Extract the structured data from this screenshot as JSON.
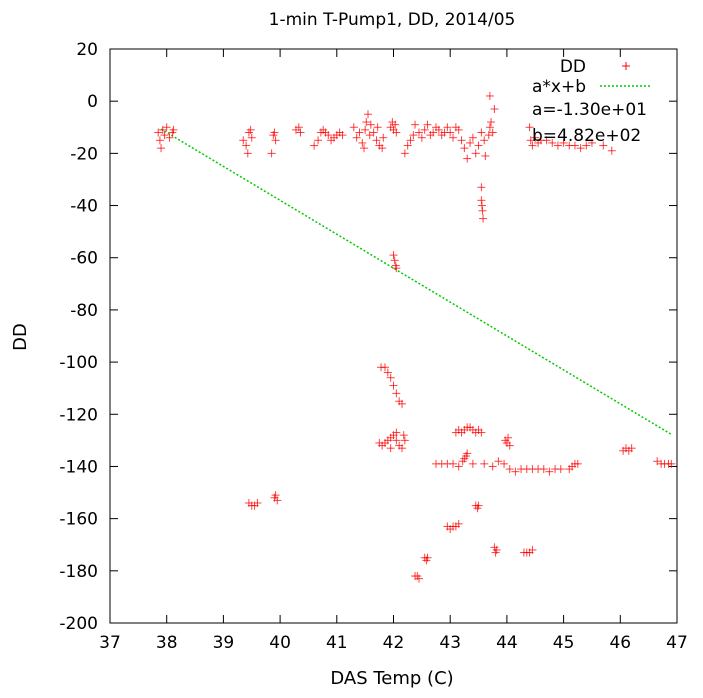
{
  "chart_data": {
    "type": "scatter",
    "title": "1-min T-Pump1, DD, 2014/05",
    "xlabel": "DAS Temp (C)",
    "ylabel": "DD",
    "xlim": [
      37,
      47
    ],
    "ylim": [
      -200,
      20
    ],
    "xticks": [
      "37",
      "38",
      "39",
      "40",
      "41",
      "42",
      "43",
      "44",
      "45",
      "46",
      "47"
    ],
    "yticks": [
      "20",
      "0",
      "-20",
      "-40",
      "-60",
      "-80",
      "-100",
      "-120",
      "-140",
      "-160",
      "-180",
      "-200"
    ],
    "grid": false,
    "legend_position": "top-right",
    "annotations": [
      "a=-1.30e+01",
      "b=4.82e+02"
    ],
    "colors": {
      "scatter": "#ff0000",
      "fit": "#00cc00"
    },
    "series": [
      {
        "name": "DD",
        "kind": "points",
        "points": [
          [
            37.85,
            -12
          ],
          [
            37.88,
            -15
          ],
          [
            37.9,
            -18
          ],
          [
            37.93,
            -11
          ],
          [
            37.96,
            -13
          ],
          [
            38.0,
            -10
          ],
          [
            38.05,
            -14
          ],
          [
            38.1,
            -12
          ],
          [
            38.12,
            -11
          ],
          [
            39.35,
            -15
          ],
          [
            39.4,
            -17
          ],
          [
            39.43,
            -20
          ],
          [
            39.45,
            -12
          ],
          [
            39.48,
            -11
          ],
          [
            39.5,
            -14
          ],
          [
            39.85,
            -20
          ],
          [
            39.88,
            -13
          ],
          [
            39.9,
            -12
          ],
          [
            39.92,
            -15
          ],
          [
            40.28,
            -11
          ],
          [
            40.33,
            -10
          ],
          [
            40.36,
            -12
          ],
          [
            40.6,
            -17
          ],
          [
            40.67,
            -15
          ],
          [
            40.72,
            -12
          ],
          [
            40.76,
            -11
          ],
          [
            40.8,
            -12
          ],
          [
            40.85,
            -13
          ],
          [
            40.9,
            -15
          ],
          [
            40.95,
            -14
          ],
          [
            41.0,
            -13
          ],
          [
            41.05,
            -12
          ],
          [
            41.1,
            -13
          ],
          [
            41.3,
            -10
          ],
          [
            41.35,
            -14
          ],
          [
            41.4,
            -12
          ],
          [
            41.45,
            -16
          ],
          [
            41.48,
            -18
          ],
          [
            41.5,
            -11
          ],
          [
            41.52,
            -8
          ],
          [
            41.55,
            -5
          ],
          [
            41.58,
            -13
          ],
          [
            41.6,
            -9
          ],
          [
            41.65,
            -12
          ],
          [
            41.7,
            -15
          ],
          [
            41.72,
            -10
          ],
          [
            41.75,
            -17
          ],
          [
            41.8,
            -18
          ],
          [
            41.82,
            -14
          ],
          [
            41.95,
            -10
          ],
          [
            41.98,
            -8
          ],
          [
            42.0,
            -11
          ],
          [
            42.03,
            -9
          ],
          [
            42.05,
            -12
          ],
          [
            42.2,
            -20
          ],
          [
            42.25,
            -17
          ],
          [
            42.3,
            -15
          ],
          [
            42.35,
            -13
          ],
          [
            42.38,
            -9
          ],
          [
            42.45,
            -12
          ],
          [
            42.5,
            -14
          ],
          [
            42.55,
            -11
          ],
          [
            42.6,
            -9
          ],
          [
            42.65,
            -13
          ],
          [
            42.7,
            -12
          ],
          [
            42.75,
            -10
          ],
          [
            42.8,
            -11
          ],
          [
            42.85,
            -13
          ],
          [
            42.9,
            -12
          ],
          [
            42.95,
            -10
          ],
          [
            43.0,
            -12
          ],
          [
            43.05,
            -14
          ],
          [
            43.1,
            -10
          ],
          [
            43.15,
            -11
          ],
          [
            43.2,
            -15
          ],
          [
            43.25,
            -18
          ],
          [
            43.3,
            -22
          ],
          [
            43.35,
            -16
          ],
          [
            43.4,
            -14
          ],
          [
            43.45,
            -20
          ],
          [
            43.5,
            -17
          ],
          [
            43.55,
            -12
          ],
          [
            43.6,
            -15
          ],
          [
            43.62,
            -21
          ],
          [
            43.68,
            -13
          ],
          [
            43.7,
            -10
          ],
          [
            43.72,
            -8
          ],
          [
            43.75,
            -12
          ],
          [
            43.78,
            -3
          ],
          [
            43.7,
            2
          ],
          [
            44.4,
            -10
          ],
          [
            44.42,
            -15
          ],
          [
            44.45,
            -17
          ],
          [
            44.5,
            -14
          ],
          [
            44.55,
            -16
          ],
          [
            44.6,
            -15
          ],
          [
            44.7,
            -15
          ],
          [
            44.8,
            -16
          ],
          [
            44.9,
            -17
          ],
          [
            45.0,
            -16
          ],
          [
            45.1,
            -17
          ],
          [
            45.2,
            -17
          ],
          [
            45.3,
            -18
          ],
          [
            45.4,
            -17
          ],
          [
            45.5,
            -16
          ],
          [
            45.7,
            -17
          ],
          [
            45.85,
            -19
          ],
          [
            43.55,
            -33
          ],
          [
            43.55,
            -38
          ],
          [
            43.56,
            -40
          ],
          [
            43.57,
            -42
          ],
          [
            43.58,
            -45
          ],
          [
            42.0,
            -59
          ],
          [
            42.02,
            -61
          ],
          [
            42.04,
            -63
          ],
          [
            42.05,
            -64
          ],
          [
            41.78,
            -102
          ],
          [
            41.85,
            -102
          ],
          [
            41.9,
            -104
          ],
          [
            41.95,
            -106
          ],
          [
            42.0,
            -109
          ],
          [
            42.05,
            -112
          ],
          [
            42.1,
            -115
          ],
          [
            42.15,
            -116
          ],
          [
            41.75,
            -131
          ],
          [
            41.8,
            -132
          ],
          [
            41.85,
            -131
          ],
          [
            41.9,
            -130
          ],
          [
            41.95,
            -129
          ],
          [
            42.0,
            -128
          ],
          [
            42.05,
            -130
          ],
          [
            42.1,
            -132
          ],
          [
            42.15,
            -133
          ],
          [
            42.2,
            -130
          ],
          [
            41.95,
            -133
          ],
          [
            42.05,
            -127
          ],
          [
            42.18,
            -128
          ],
          [
            43.1,
            -127
          ],
          [
            43.15,
            -126
          ],
          [
            43.2,
            -127
          ],
          [
            43.25,
            -126
          ],
          [
            43.3,
            -125
          ],
          [
            43.35,
            -125
          ],
          [
            43.4,
            -126
          ],
          [
            43.45,
            -127
          ],
          [
            43.5,
            -126
          ],
          [
            43.55,
            -127
          ],
          [
            43.25,
            -137
          ],
          [
            43.28,
            -136
          ],
          [
            43.3,
            -135
          ],
          [
            43.22,
            -138
          ],
          [
            42.75,
            -139
          ],
          [
            42.85,
            -139
          ],
          [
            42.95,
            -139
          ],
          [
            43.05,
            -139
          ],
          [
            43.15,
            -140
          ],
          [
            43.4,
            -139
          ],
          [
            43.6,
            -139
          ],
          [
            43.75,
            -140
          ],
          [
            43.85,
            -138
          ],
          [
            43.95,
            -139
          ],
          [
            44.05,
            -141
          ],
          [
            44.15,
            -142
          ],
          [
            44.25,
            -141
          ],
          [
            44.35,
            -141
          ],
          [
            44.45,
            -141
          ],
          [
            44.55,
            -141
          ],
          [
            44.65,
            -141
          ],
          [
            44.75,
            -142
          ],
          [
            44.85,
            -141
          ],
          [
            44.95,
            -141
          ],
          [
            45.1,
            -141
          ],
          [
            45.15,
            -140
          ],
          [
            45.2,
            -139
          ],
          [
            45.25,
            -139
          ],
          [
            43.97,
            -130
          ],
          [
            44.0,
            -131
          ],
          [
            44.02,
            -129
          ],
          [
            44.05,
            -132
          ],
          [
            46.05,
            -134
          ],
          [
            46.1,
            -133
          ],
          [
            46.15,
            -134
          ],
          [
            46.2,
            -133
          ],
          [
            46.65,
            -138
          ],
          [
            46.72,
            -139
          ],
          [
            46.78,
            -139
          ],
          [
            46.85,
            -139
          ],
          [
            46.9,
            -139
          ],
          [
            39.45,
            -154
          ],
          [
            39.5,
            -155
          ],
          [
            39.55,
            -155
          ],
          [
            39.6,
            -154
          ],
          [
            39.9,
            -152
          ],
          [
            39.92,
            -151
          ],
          [
            39.95,
            -153
          ],
          [
            42.95,
            -163
          ],
          [
            43.0,
            -164
          ],
          [
            43.05,
            -163
          ],
          [
            43.1,
            -163
          ],
          [
            43.15,
            -162
          ],
          [
            43.45,
            -155
          ],
          [
            43.48,
            -156
          ],
          [
            43.5,
            -155
          ],
          [
            43.78,
            -171
          ],
          [
            43.8,
            -173
          ],
          [
            43.82,
            -172
          ],
          [
            42.55,
            -175
          ],
          [
            42.58,
            -176
          ],
          [
            42.6,
            -175
          ],
          [
            42.38,
            -182
          ],
          [
            42.42,
            -182
          ],
          [
            42.45,
            -183
          ],
          [
            44.3,
            -173
          ],
          [
            44.35,
            -173
          ],
          [
            44.4,
            -173
          ],
          [
            44.45,
            -172
          ]
        ]
      },
      {
        "name": "a*x+b",
        "kind": "line",
        "points": [
          [
            37.9,
            -10.7
          ],
          [
            46.9,
            -127.7
          ]
        ]
      }
    ]
  }
}
